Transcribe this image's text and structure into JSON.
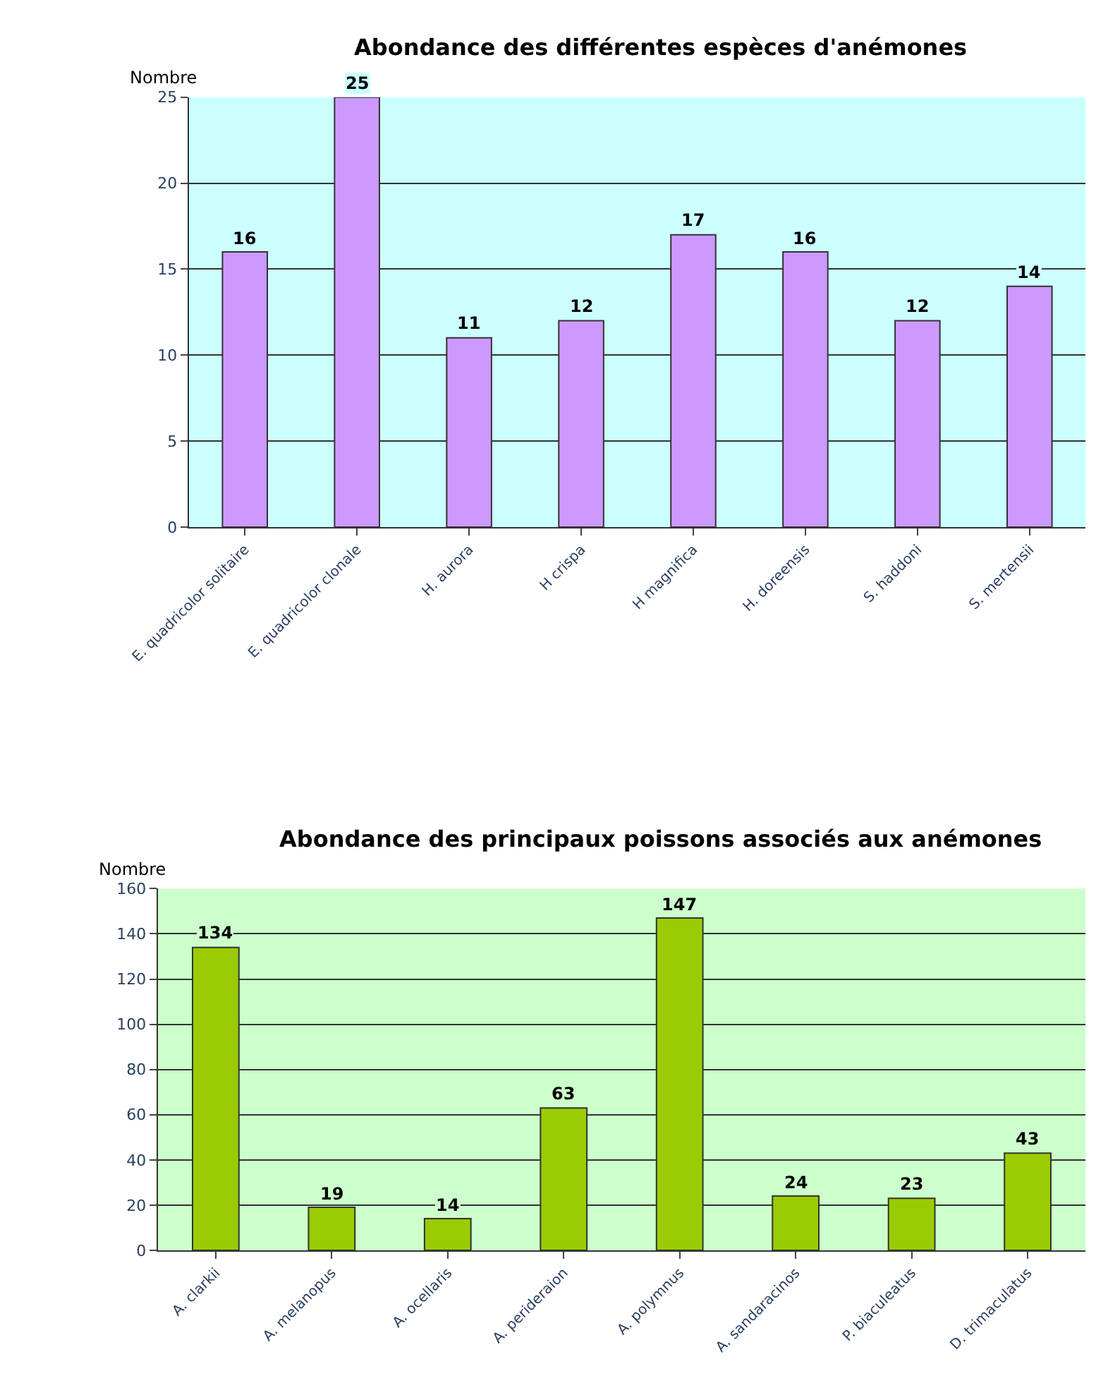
{
  "chart_data": [
    {
      "type": "bar",
      "title": "Abondance des différentes espèces d'anémones",
      "ylabel": "Nombre",
      "categories": [
        "E. quadricolor solitaire",
        "E. quadricolor clonale",
        "H. aurora",
        "H crispa",
        "H magnifica",
        "H. doreensis",
        "S. haddoni",
        "S. mertensii"
      ],
      "values": [
        16,
        25,
        11,
        12,
        17,
        16,
        12,
        14
      ],
      "color": "#cc99ff",
      "ylim": [
        0,
        25
      ],
      "yticks": [
        0,
        5,
        10,
        15,
        20,
        25
      ],
      "grid": "y",
      "data_labels": true
    },
    {
      "type": "bar",
      "title": "Abondance des principaux poissons associés aux anémones",
      "ylabel": "Nombre",
      "categories": [
        "A. clarkii",
        "A. melanopus",
        "A. ocellaris",
        "A. perideraion",
        "A. polymnus",
        "A. sandaracinos",
        "P. biaculeatus",
        "D. trimaculatus"
      ],
      "values": [
        134,
        19,
        14,
        63,
        147,
        24,
        23,
        43
      ],
      "color": "#99cc00",
      "ylim": [
        0,
        160
      ],
      "yticks": [
        0,
        20,
        40,
        60,
        80,
        100,
        120,
        140,
        160
      ],
      "grid": "y",
      "data_labels": true
    }
  ]
}
